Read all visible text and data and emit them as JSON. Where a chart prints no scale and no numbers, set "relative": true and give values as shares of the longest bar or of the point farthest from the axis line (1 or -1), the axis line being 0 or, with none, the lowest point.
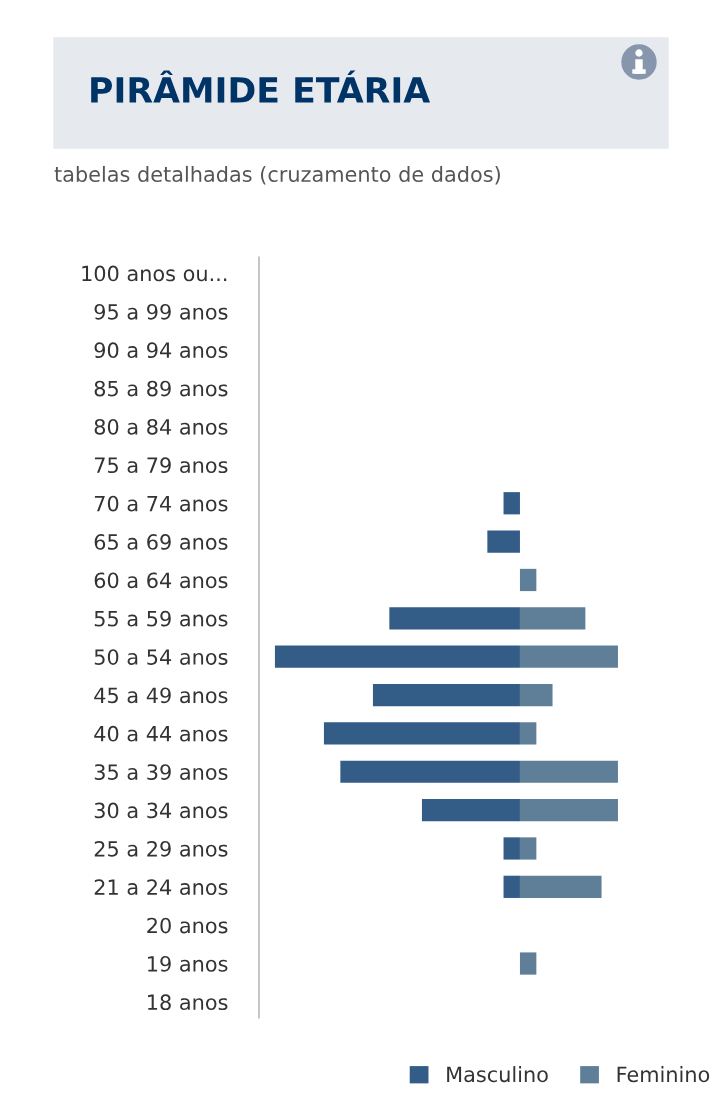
{
  "chart_data": {
    "type": "bar",
    "orientation": "horizontal",
    "relative": true,
    "title": "PIRÂMIDE ETÁRIA",
    "subtitle": "tabelas detalhadas (cruzamento de dados)",
    "categories": [
      "100 anos ou...",
      "95 a 99 anos",
      "90 a 94 anos",
      "85 a 89 anos",
      "80 a 84 anos",
      "75 a 79 anos",
      "70 a 74 anos",
      "65 a 69 anos",
      "60 a 64 anos",
      "55 a 59 anos",
      "50 a 54 anos",
      "45 a 49 anos",
      "40 a 44 anos",
      "35 a 39 anos",
      "30 a 34 anos",
      "25 a 29 anos",
      "21 a 24 anos",
      "20 anos",
      "19 anos",
      "18 anos"
    ],
    "series": [
      {
        "name": "Masculino",
        "color": "#335c87",
        "values": [
          0,
          0,
          0,
          0,
          0,
          0,
          -0.067,
          -0.133,
          0,
          -0.533,
          -1,
          -0.6,
          -0.8,
          -0.733,
          -0.4,
          -0.067,
          -0.067,
          0,
          0,
          0
        ]
      },
      {
        "name": "Feminino",
        "color": "#5f7f99",
        "values": [
          0,
          0,
          0,
          0,
          0,
          0,
          0,
          0,
          0.067,
          0.267,
          0.4,
          0.133,
          0.067,
          0.4,
          0.4,
          0.067,
          0.333,
          0,
          0.067,
          0
        ]
      }
    ],
    "legend": "bottom",
    "grid": false
  }
}
